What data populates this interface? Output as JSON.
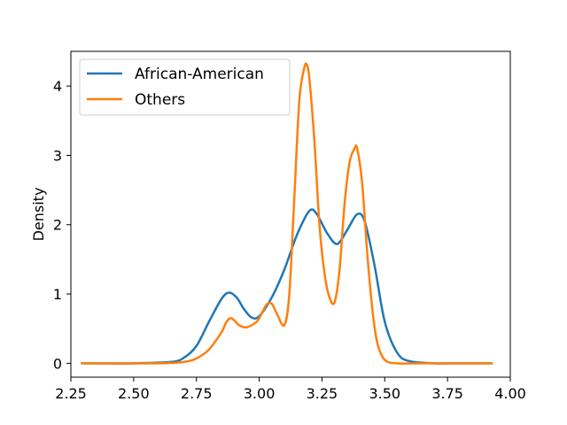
{
  "chart_data": {
    "type": "line",
    "title": "",
    "xlabel": "",
    "ylabel": "Density",
    "xlim": [
      2.25,
      4.0
    ],
    "ylim": [
      -0.2,
      4.5
    ],
    "x_ticks": [
      2.25,
      2.5,
      2.75,
      3.0,
      3.25,
      3.5,
      3.75,
      4.0
    ],
    "x_tick_labels": [
      "2.25",
      "2.50",
      "2.75",
      "3.00",
      "3.25",
      "3.50",
      "3.75",
      "4.00"
    ],
    "y_ticks": [
      0,
      1,
      2,
      3,
      4
    ],
    "y_tick_labels": [
      "0",
      "1",
      "2",
      "3",
      "4"
    ],
    "grid": false,
    "legend_position": "top-left",
    "series": [
      {
        "name": "African-American",
        "color": "#1f77b4",
        "x": [
          2.29,
          2.5,
          2.65,
          2.7,
          2.75,
          2.8,
          2.85,
          2.88,
          2.91,
          2.94,
          2.97,
          3.0,
          3.05,
          3.1,
          3.15,
          3.2,
          3.23,
          3.27,
          3.31,
          3.35,
          3.39,
          3.42,
          3.46,
          3.5,
          3.55,
          3.6,
          3.7,
          3.8,
          3.93
        ],
        "y": [
          0,
          0,
          0.02,
          0.08,
          0.25,
          0.6,
          0.93,
          1.02,
          0.95,
          0.78,
          0.66,
          0.68,
          0.95,
          1.35,
          1.85,
          2.2,
          2.15,
          1.88,
          1.72,
          1.92,
          2.15,
          2.05,
          1.4,
          0.6,
          0.15,
          0.03,
          0,
          0,
          0
        ]
      },
      {
        "name": "Others",
        "color": "#ff7f0e",
        "x": [
          2.29,
          2.6,
          2.7,
          2.75,
          2.8,
          2.85,
          2.87,
          2.89,
          2.92,
          2.95,
          2.99,
          3.01,
          3.03,
          3.05,
          3.07,
          3.1,
          3.12,
          3.14,
          3.16,
          3.18,
          3.19,
          3.2,
          3.22,
          3.24,
          3.26,
          3.28,
          3.3,
          3.32,
          3.34,
          3.36,
          3.38,
          3.39,
          3.41,
          3.43,
          3.45,
          3.47,
          3.5,
          3.55,
          3.65,
          3.93
        ],
        "y": [
          0,
          0,
          0.02,
          0.07,
          0.2,
          0.45,
          0.6,
          0.65,
          0.55,
          0.52,
          0.6,
          0.72,
          0.85,
          0.86,
          0.72,
          0.55,
          1.0,
          2.4,
          3.8,
          4.27,
          4.3,
          4.1,
          3.2,
          2.0,
          1.3,
          0.95,
          0.88,
          1.35,
          2.3,
          2.9,
          3.1,
          3.1,
          2.6,
          1.6,
          0.8,
          0.3,
          0.05,
          0,
          0,
          0
        ]
      }
    ]
  }
}
